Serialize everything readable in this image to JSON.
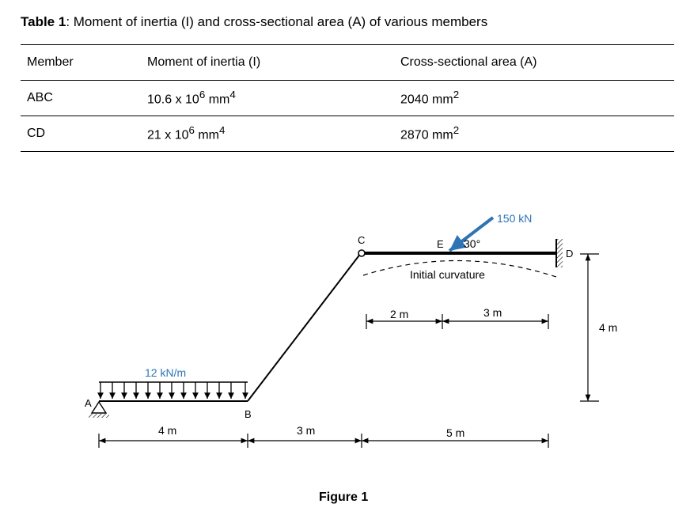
{
  "caption": {
    "label": "Table 1",
    "text": ": Moment of inertia (I) and cross-sectional area (A) of various members"
  },
  "table": {
    "headers": [
      "Member",
      "Moment of inertia (I)",
      "Cross-sectional area (A)"
    ],
    "rows": [
      {
        "member": "ABC",
        "inertia": {
          "base": "10.6 x 10",
          "exp": "6",
          "unit": " mm",
          "unit_exp": "4"
        },
        "area": {
          "base": "2040 mm",
          "exp": "2"
        }
      },
      {
        "member": "CD",
        "inertia": {
          "base": "21 x 10",
          "exp": "6",
          "unit": " mm",
          "unit_exp": "4"
        },
        "area": {
          "base": "2870 mm",
          "exp": "2"
        }
      }
    ]
  },
  "figure": {
    "node_labels": {
      "a": "A",
      "b": "B",
      "c": "C",
      "d": "D",
      "e": "E"
    },
    "udl_label": "12 kN/m",
    "force_label": "150 kN",
    "angle_label": "30°",
    "curvature_label": "Initial curvature",
    "dims": {
      "ab": "4 m",
      "b_c": "3 m",
      "c_d": "5 m",
      "c_e": "2 m",
      "e_d": "3 m",
      "height": "4 m"
    },
    "caption": "Figure 1",
    "colors": {
      "load": "#2e74b5",
      "structure": "#000000"
    }
  }
}
